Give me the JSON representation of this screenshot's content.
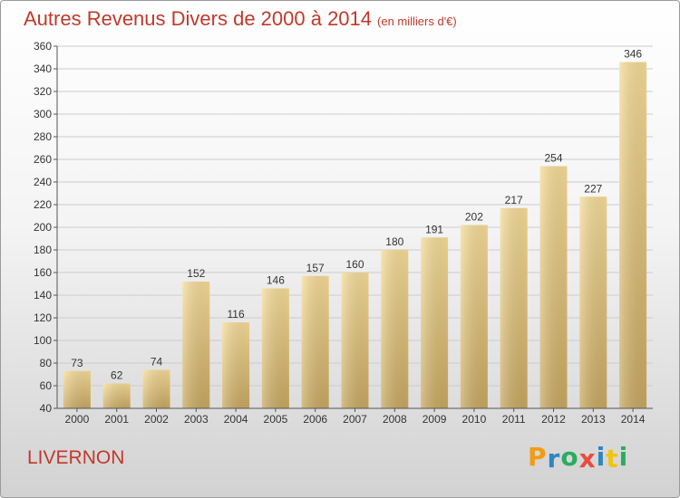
{
  "title": "Autres Revenus Divers de 2000 à 2014",
  "subtitle": "(en milliers d'€)",
  "commune": "LIVERNON",
  "brand": {
    "letters": [
      "P",
      "r",
      "o",
      "x",
      "i",
      "t",
      "i"
    ],
    "colors": [
      "#f39c12",
      "#2e86c1",
      "#27ae60",
      "#e74c3c",
      "#2e86c1",
      "#f1c40f",
      "#27ae60"
    ]
  },
  "colors": {
    "title": "#c0392b",
    "bar_top": "#f6dc98",
    "bar_bottom": "#c8a860",
    "grid": "#cccccc"
  },
  "chart_data": {
    "type": "bar",
    "categories": [
      "2000",
      "2001",
      "2002",
      "2003",
      "2004",
      "2005",
      "2006",
      "2007",
      "2008",
      "2009",
      "2010",
      "2011",
      "2012",
      "2013",
      "2014"
    ],
    "values": [
      73,
      62,
      74,
      152,
      116,
      146,
      157,
      160,
      180,
      191,
      202,
      217,
      254,
      227,
      346
    ],
    "ylim": [
      40,
      360
    ],
    "yticks": [
      40,
      60,
      80,
      100,
      120,
      140,
      160,
      180,
      200,
      220,
      240,
      260,
      280,
      300,
      320,
      340,
      360
    ],
    "grid": true,
    "xlabel": "",
    "ylabel": ""
  }
}
